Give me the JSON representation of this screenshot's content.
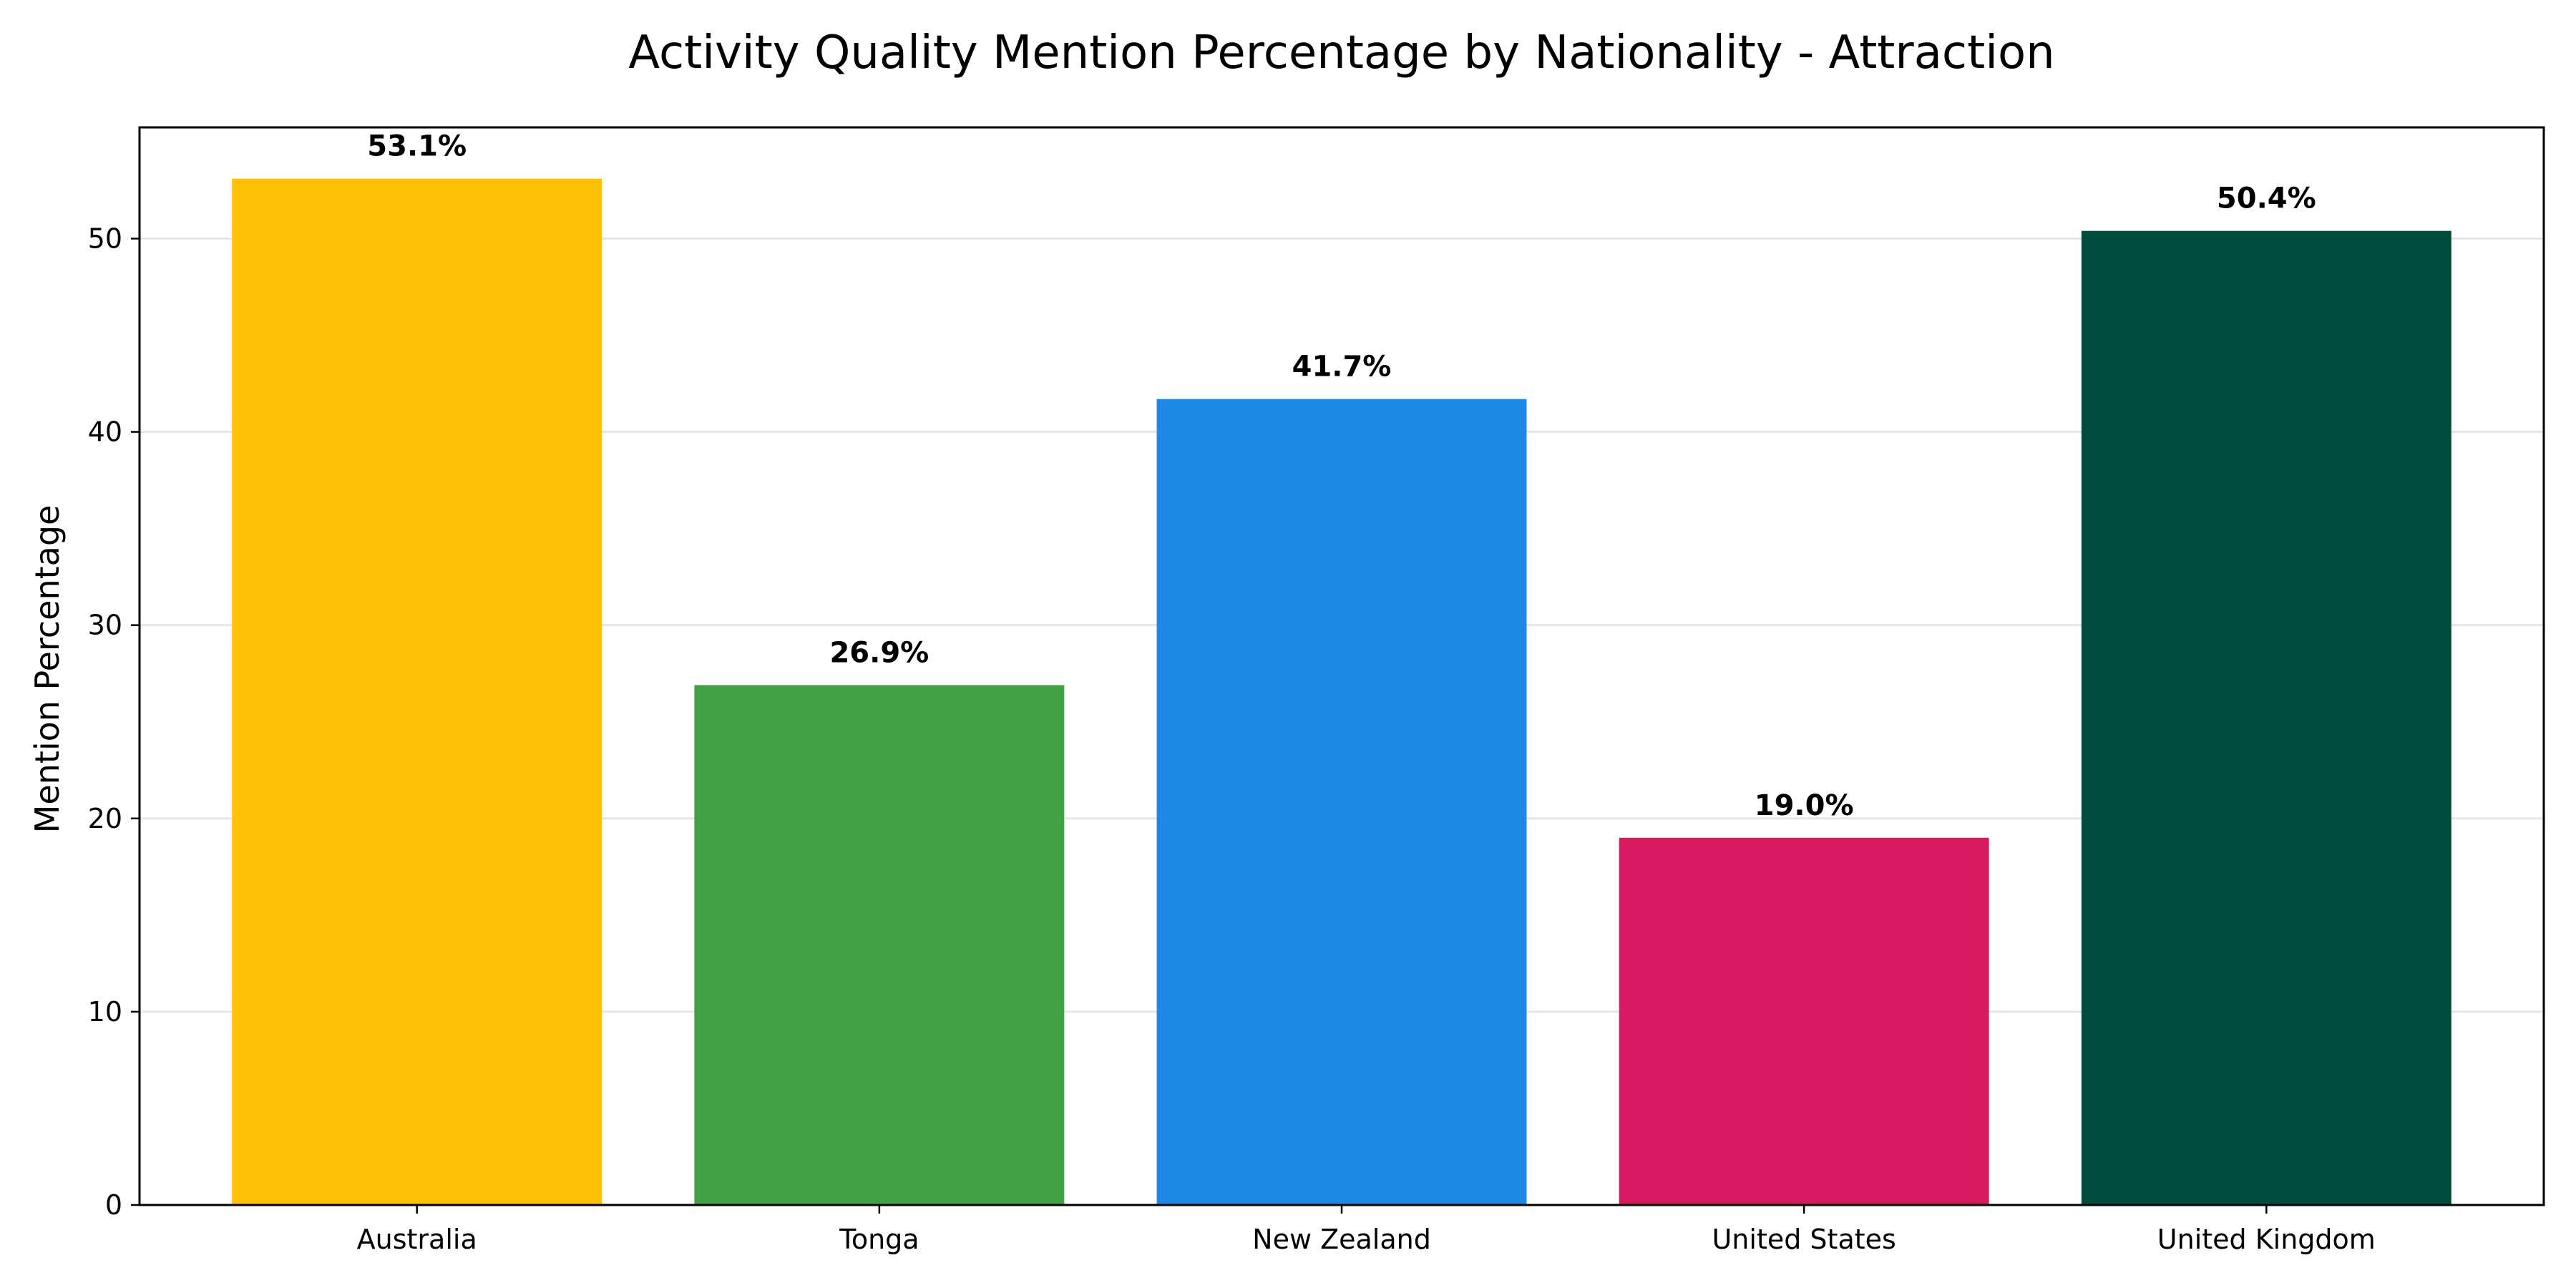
{
  "chart_data": {
    "type": "bar",
    "title": "Activity Quality Mention Percentage by Nationality - Attraction",
    "xlabel": "",
    "ylabel": "Mention Percentage",
    "categories": [
      "Australia",
      "Tonga",
      "New Zealand",
      "United States",
      "United Kingdom"
    ],
    "values": [
      53.1,
      26.9,
      41.7,
      19.0,
      50.4
    ],
    "value_labels": [
      "53.1%",
      "26.9%",
      "41.7%",
      "19.0%",
      "50.4%"
    ],
    "colors": [
      "#FFC107",
      "#43A047",
      "#1E88E5",
      "#D81B60",
      "#004D40"
    ],
    "ylim": [
      0,
      55.755
    ],
    "yticks": [
      0,
      10,
      20,
      30,
      40,
      50
    ],
    "ytick_labels": [
      "0",
      "10",
      "20",
      "30",
      "40",
      "50"
    ],
    "grid": "y",
    "legend": "none"
  }
}
